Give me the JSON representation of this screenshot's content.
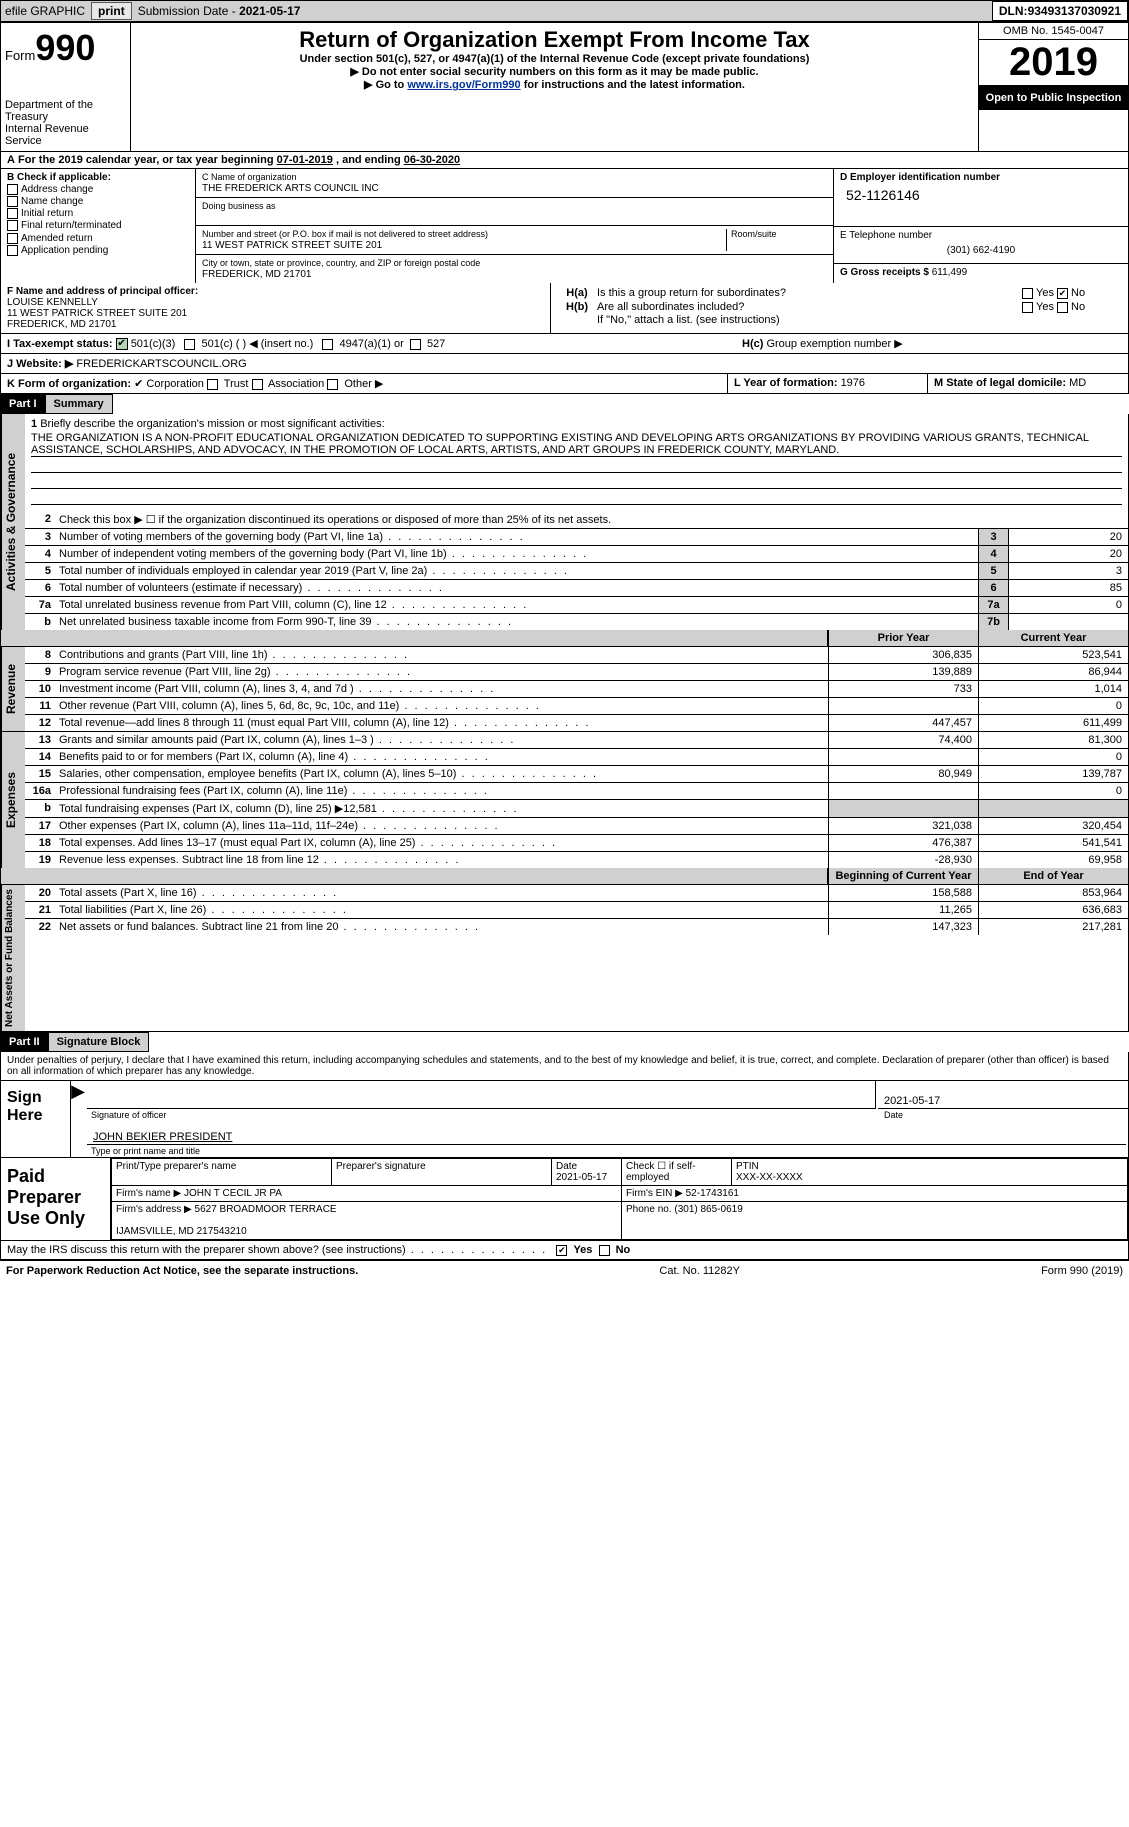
{
  "topbar": {
    "efile": "efile GRAPHIC",
    "print": "print",
    "subdate_lbl": "Submission Date - ",
    "subdate": "2021-05-17",
    "dln_lbl": "DLN: ",
    "dln": "93493137030921"
  },
  "hdr": {
    "form": "Form",
    "num": "990",
    "dept": "Department of the Treasury\nInternal Revenue Service",
    "title": "Return of Organization Exempt From Income Tax",
    "sub1": "Under section 501(c), 527, or 4947(a)(1) of the Internal Revenue Code (except private foundations)",
    "sub2": "▶ Do not enter social security numbers on this form as it may be made public.",
    "sub3_pre": "▶ Go to ",
    "sub3_link": "www.irs.gov/Form990",
    "sub3_post": " for instructions and the latest information.",
    "omb": "OMB No. 1545-0047",
    "year": "2019",
    "open": "Open to Public Inspection"
  },
  "period": {
    "a": "A",
    "txt1": " For the 2019 calendar year, or tax year beginning ",
    "beg": "07-01-2019",
    "txt2": "  , and ending ",
    "end": "06-30-2020"
  },
  "B": {
    "lbl": "B Check if applicable:",
    "items": [
      "Address change",
      "Name change",
      "Initial return",
      "Final return/terminated",
      "Amended return",
      "Application pending"
    ]
  },
  "C": {
    "name_lbl": "C Name of organization",
    "name": "THE FREDERICK ARTS COUNCIL INC",
    "dba_lbl": "Doing business as",
    "addr_lbl": "Number and street (or P.O. box if mail is not delivered to street address)",
    "room_lbl": "Room/suite",
    "addr": "11 WEST PATRICK STREET SUITE 201",
    "city_lbl": "City or town, state or province, country, and ZIP or foreign postal code",
    "city": "FREDERICK, MD  21701"
  },
  "D": {
    "lbl": "D Employer identification number",
    "val": "52-1126146"
  },
  "E": {
    "lbl": "E Telephone number",
    "val": "(301) 662-4190"
  },
  "G": {
    "lbl": "G Gross receipts $ ",
    "val": "611,499"
  },
  "F": {
    "lbl": "F Name and address of principal officer:",
    "name": "LOUISE KENNELLY",
    "addr": "11 WEST PATRICK STREET SUITE 201\nFREDERICK, MD  21701"
  },
  "H": {
    "a_lbl": "Is this a group return for subordinates?",
    "a_yes": "Yes",
    "a_no": "No",
    "b_lbl": "Are all subordinates included?",
    "b_yes": "Yes",
    "b_no": "No",
    "b_note": "If \"No,\" attach a list. (see instructions)",
    "c_lbl": "Group exemption number ▶"
  },
  "I": {
    "lbl": "I    Tax-exempt status:",
    "c3": "501(c)(3)",
    "c": "501(c) (  ) ◀ (insert no.)",
    "a1": "4947(a)(1) or",
    "s527": "527"
  },
  "J": {
    "lbl": "J   Website: ▶",
    "val": "FREDERICKARTSCOUNCIL.ORG"
  },
  "K": {
    "lbl": "K Form of organization:",
    "corp": "Corporation",
    "trust": "Trust",
    "assoc": "Association",
    "other": "Other ▶"
  },
  "L": {
    "lbl": "L Year of formation: ",
    "val": "1976"
  },
  "M": {
    "lbl": "M State of legal domicile: ",
    "val": "MD"
  },
  "part1": {
    "num": "Part I",
    "title": "Summary"
  },
  "tabs": {
    "gov": "Activities & Governance",
    "rev": "Revenue",
    "exp": "Expenses",
    "net": "Net Assets or Fund Balances"
  },
  "mission": {
    "q": "Briefly describe the organization's mission or most significant activities:",
    "txt": "THE ORGANIZATION IS A NON-PROFIT EDUCATIONAL ORGANIZATION DEDICATED TO SUPPORTING EXISTING AND DEVELOPING ARTS ORGANIZATIONS BY PROVIDING VARIOUS GRANTS, TECHNICAL ASSISTANCE, SCHOLARSHIPS, AND ADVOCACY, IN THE PROMOTION OF LOCAL ARTS, ARTISTS, AND ART GROUPS IN FREDERICK COUNTY, MARYLAND."
  },
  "gov_lines": [
    {
      "n": "2",
      "t": "Check this box ▶ ☐  if the organization discontinued its operations or disposed of more than 25% of its net assets.",
      "box": "",
      "v": ""
    },
    {
      "n": "3",
      "t": "Number of voting members of the governing body (Part VI, line 1a)",
      "box": "3",
      "v": "20"
    },
    {
      "n": "4",
      "t": "Number of independent voting members of the governing body (Part VI, line 1b)",
      "box": "4",
      "v": "20"
    },
    {
      "n": "5",
      "t": "Total number of individuals employed in calendar year 2019 (Part V, line 2a)",
      "box": "5",
      "v": "3"
    },
    {
      "n": "6",
      "t": "Total number of volunteers (estimate if necessary)",
      "box": "6",
      "v": "85"
    },
    {
      "n": "7a",
      "t": "Total unrelated business revenue from Part VIII, column (C), line 12",
      "box": "7a",
      "v": "0"
    },
    {
      "n": "b",
      "t": "Net unrelated business taxable income from Form 990-T, line 39",
      "box": "7b",
      "v": ""
    }
  ],
  "cols": {
    "prior": "Prior Year",
    "curr": "Current Year",
    "beg": "Beginning of Current Year",
    "end": "End of Year"
  },
  "rev_lines": [
    {
      "n": "8",
      "t": "Contributions and grants (Part VIII, line 1h)",
      "p": "306,835",
      "c": "523,541"
    },
    {
      "n": "9",
      "t": "Program service revenue (Part VIII, line 2g)",
      "p": "139,889",
      "c": "86,944"
    },
    {
      "n": "10",
      "t": "Investment income (Part VIII, column (A), lines 3, 4, and 7d )",
      "p": "733",
      "c": "1,014"
    },
    {
      "n": "11",
      "t": "Other revenue (Part VIII, column (A), lines 5, 6d, 8c, 9c, 10c, and 11e)",
      "p": "",
      "c": "0"
    },
    {
      "n": "12",
      "t": "Total revenue—add lines 8 through 11 (must equal Part VIII, column (A), line 12)",
      "p": "447,457",
      "c": "611,499"
    }
  ],
  "exp_lines": [
    {
      "n": "13",
      "t": "Grants and similar amounts paid (Part IX, column (A), lines 1–3 )",
      "p": "74,400",
      "c": "81,300"
    },
    {
      "n": "14",
      "t": "Benefits paid to or for members (Part IX, column (A), line 4)",
      "p": "",
      "c": "0"
    },
    {
      "n": "15",
      "t": "Salaries, other compensation, employee benefits (Part IX, column (A), lines 5–10)",
      "p": "80,949",
      "c": "139,787"
    },
    {
      "n": "16a",
      "t": "Professional fundraising fees (Part IX, column (A), line 11e)",
      "p": "",
      "c": "0"
    },
    {
      "n": "b",
      "t": "Total fundraising expenses (Part IX, column (D), line 25) ▶12,581",
      "p": "gray",
      "c": "gray"
    },
    {
      "n": "17",
      "t": "Other expenses (Part IX, column (A), lines 11a–11d, 11f–24e)",
      "p": "321,038",
      "c": "320,454"
    },
    {
      "n": "18",
      "t": "Total expenses. Add lines 13–17 (must equal Part IX, column (A), line 25)",
      "p": "476,387",
      "c": "541,541"
    },
    {
      "n": "19",
      "t": "Revenue less expenses. Subtract line 18 from line 12",
      "p": "-28,930",
      "c": "69,958"
    }
  ],
  "net_lines": [
    {
      "n": "20",
      "t": "Total assets (Part X, line 16)",
      "p": "158,588",
      "c": "853,964"
    },
    {
      "n": "21",
      "t": "Total liabilities (Part X, line 26)",
      "p": "11,265",
      "c": "636,683"
    },
    {
      "n": "22",
      "t": "Net assets or fund balances. Subtract line 21 from line 20",
      "p": "147,323",
      "c": "217,281"
    }
  ],
  "part2": {
    "num": "Part II",
    "title": "Signature Block"
  },
  "sig": {
    "decl": "Under penalties of perjury, I declare that I have examined this return, including accompanying schedules and statements, and to the best of my knowledge and belief, it is true, correct, and complete. Declaration of preparer (other than officer) is based on all information of which preparer has any knowledge.",
    "here": "Sign Here",
    "officer": "Signature of officer",
    "date": "Date",
    "date_val": "2021-05-17",
    "name": "JOHN BEKIER PRESIDENT",
    "name_lbl": "Type or print name and title"
  },
  "paid": {
    "lbl": "Paid Preparer Use Only",
    "h1": "Print/Type preparer's name",
    "h2": "Preparer's signature",
    "h3": "Date",
    "h3v": "2021-05-17",
    "h4": "Check ☐ if self-employed",
    "h5": "PTIN",
    "h5v": "XXX-XX-XXXX",
    "firm_lbl": "Firm's name    ▶",
    "firm": "JOHN T CECIL JR PA",
    "ein_lbl": "Firm's EIN ▶",
    "ein": "52-1743161",
    "addr_lbl": "Firm's address ▶",
    "addr": "5627 BROADMOOR TERRACE",
    "addr2": "IJAMSVILLE, MD  217543210",
    "ph_lbl": "Phone no. ",
    "ph": "(301) 865-0619"
  },
  "discuss": {
    "q": "May the IRS discuss this return with the preparer shown above? (see instructions)",
    "yes": "Yes",
    "no": "No"
  },
  "footer": {
    "pra": "For Paperwork Reduction Act Notice, see the separate instructions.",
    "cat": "Cat. No. 11282Y",
    "form": "Form 990 (2019)"
  }
}
